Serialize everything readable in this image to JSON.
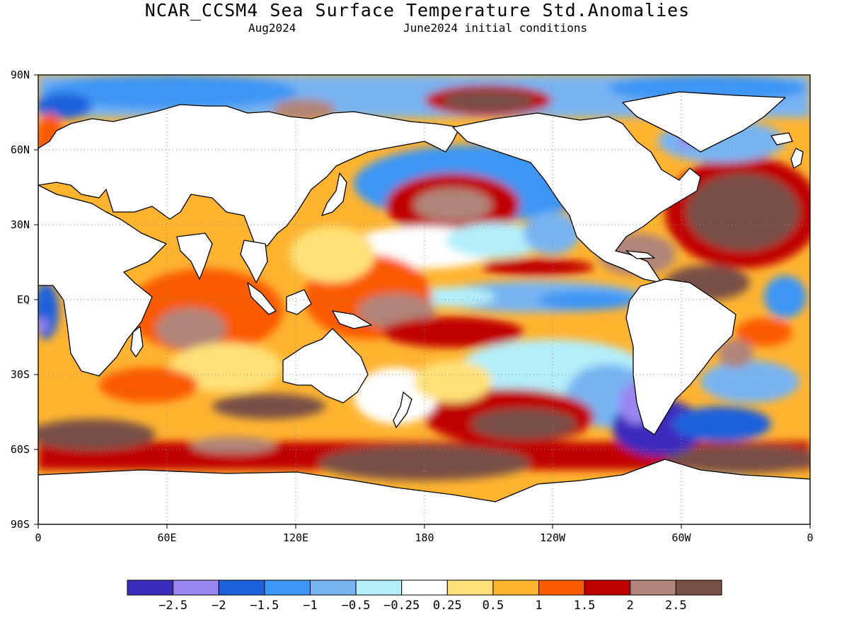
{
  "header": {
    "title": "NCAR_CCSM4 Sea Surface Temperature Std.Anomalies",
    "valid_month": "Aug2024",
    "init": "June2024 initial conditions"
  },
  "map": {
    "type": "sst-anomaly-map",
    "projection": "equirectangular",
    "lon_ticks": [
      "0",
      "60E",
      "120E",
      "180",
      "120W",
      "60W",
      "0"
    ],
    "lat_ticks": [
      "90N",
      "60N",
      "30N",
      "EQ",
      "30S",
      "60S",
      "90S"
    ],
    "grid": true,
    "land_color": "#ffffff"
  },
  "colorbar": {
    "colors": [
      "#3c2cbc",
      "#9a86f2",
      "#1e61dc",
      "#3c96f4",
      "#78b4f2",
      "#b4eefa",
      "#ffffff",
      "#ffe178",
      "#ffb430",
      "#fa5a00",
      "#c00000",
      "#b08478",
      "#785046"
    ],
    "labels": [
      "−2.5",
      "−2",
      "−1.5",
      "−1",
      "−0.5",
      "−0.25",
      "0.25",
      "0.5",
      "1",
      "1.5",
      "2",
      "2.5"
    ]
  }
}
